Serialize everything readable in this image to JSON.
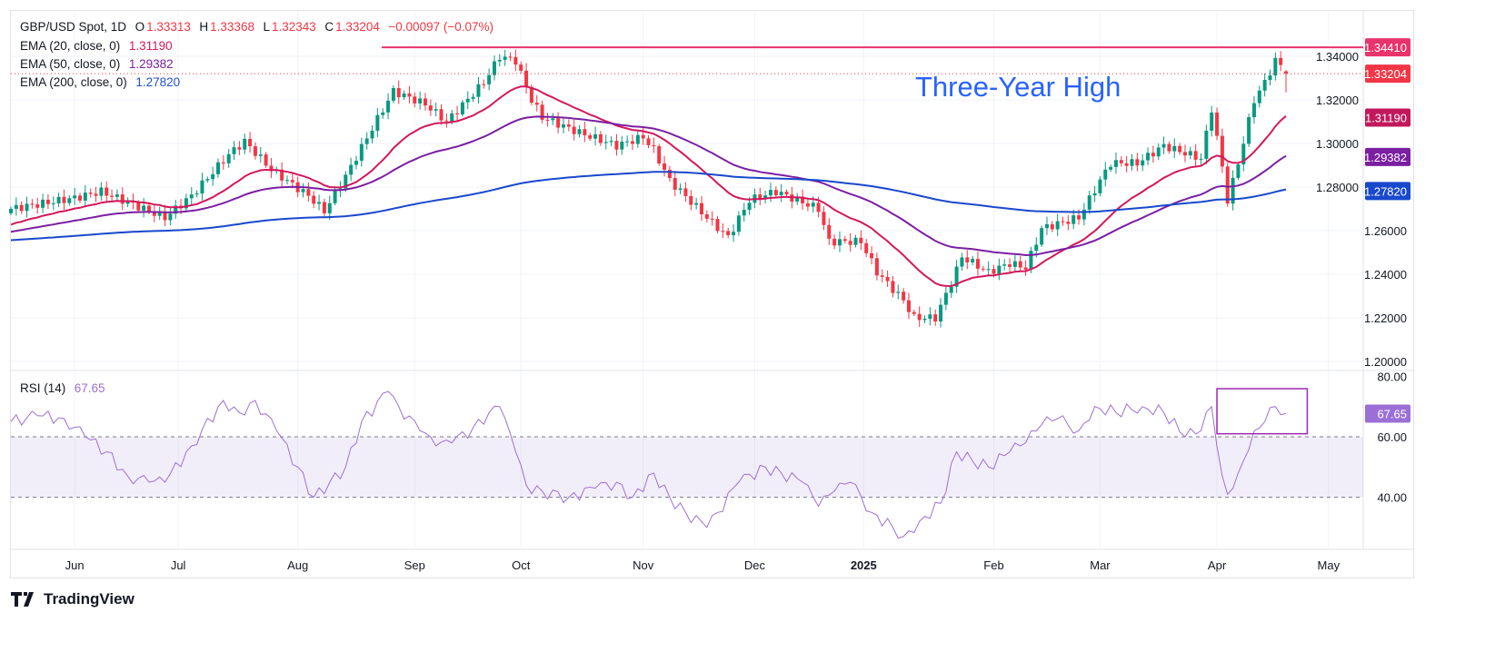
{
  "header": {
    "symbol": "GBP/USD Spot, 1D",
    "open_label": "O",
    "open": "1.33313",
    "high_label": "H",
    "high": "1.33368",
    "low_label": "L",
    "low": "1.32343",
    "close_label": "C",
    "close": "1.33204",
    "change": "−0.00097 (−0.07%)"
  },
  "indicators": [
    {
      "label": "EMA (20, close, 0)",
      "value": "1.31190",
      "color": "#d3185c"
    },
    {
      "label": "EMA (50, close, 0)",
      "value": "1.29382",
      "color": "#7b1fa2"
    },
    {
      "label": "EMA (200, close, 0)",
      "value": "1.27820",
      "color": "#1e4fd6"
    }
  ],
  "rsi_legend": {
    "label": "RSI (14)",
    "value": "67.65",
    "color": "#9c6fd6"
  },
  "annotation": "Three-Year High",
  "branding": "TradingView",
  "chart_data": [
    {
      "type": "candlestick",
      "title": "GBP/USD Spot, 1D",
      "ylim": [
        1.2,
        1.345
      ],
      "price_ticks": [
        "1.34000",
        "1.32000",
        "1.30000",
        "1.28000",
        "1.26000",
        "1.24000",
        "1.22000",
        "1.20000"
      ],
      "price_tick_values": [
        1.34,
        1.32,
        1.3,
        1.28,
        1.26,
        1.24,
        1.22,
        1.2
      ],
      "x_ticks": [
        {
          "label": "Jun",
          "i": 12
        },
        {
          "label": "Jul",
          "i": 31.5
        },
        {
          "label": "Aug",
          "i": 54
        },
        {
          "label": "Sep",
          "i": 76
        },
        {
          "label": "Oct",
          "i": 96
        },
        {
          "label": "Nov",
          "i": 119
        },
        {
          "label": "Dec",
          "i": 140
        },
        {
          "label": "2025",
          "i": 160.5,
          "bold": true
        },
        {
          "label": "Feb",
          "i": 185
        },
        {
          "label": "Mar",
          "i": 205
        },
        {
          "label": "Apr",
          "i": 227
        },
        {
          "label": "May",
          "i": 248
        }
      ],
      "close_keypoints": [
        [
          0,
          1.27
        ],
        [
          12,
          1.275
        ],
        [
          17,
          1.278
        ],
        [
          29,
          1.266
        ],
        [
          34,
          1.276
        ],
        [
          41,
          1.295
        ],
        [
          44,
          1.301
        ],
        [
          49,
          1.288
        ],
        [
          56,
          1.276
        ],
        [
          59,
          1.269
        ],
        [
          63,
          1.285
        ],
        [
          68,
          1.307
        ],
        [
          72,
          1.324
        ],
        [
          78,
          1.318
        ],
        [
          82,
          1.31
        ],
        [
          89,
          1.328
        ],
        [
          92,
          1.34
        ],
        [
          95,
          1.338
        ],
        [
          98,
          1.32
        ],
        [
          100,
          1.312
        ],
        [
          107,
          1.305
        ],
        [
          114,
          1.299
        ],
        [
          119,
          1.303
        ],
        [
          121,
          1.297
        ],
        [
          124,
          1.283
        ],
        [
          131,
          1.266
        ],
        [
          135,
          1.257
        ],
        [
          139,
          1.274
        ],
        [
          144,
          1.278
        ],
        [
          152,
          1.27
        ],
        [
          154,
          1.255
        ],
        [
          160,
          1.255
        ],
        [
          163,
          1.241
        ],
        [
          168,
          1.228
        ],
        [
          170,
          1.22
        ],
        [
          174,
          1.22
        ],
        [
          177,
          1.236
        ],
        [
          179,
          1.248
        ],
        [
          184,
          1.241
        ],
        [
          188,
          1.245
        ],
        [
          191,
          1.243
        ],
        [
          194,
          1.261
        ],
        [
          201,
          1.266
        ],
        [
          205,
          1.283
        ],
        [
          207,
          1.291
        ],
        [
          212,
          1.291
        ],
        [
          217,
          1.299
        ],
        [
          224,
          1.293
        ],
        [
          226,
          1.316
        ],
        [
          228,
          1.289
        ],
        [
          229,
          1.274
        ],
        [
          231,
          1.291
        ],
        [
          234,
          1.32
        ],
        [
          236,
          1.328
        ],
        [
          238,
          1.338
        ],
        [
          239,
          1.336
        ]
      ],
      "last_candle": {
        "open": 1.33313,
        "high": 1.33368,
        "low": 1.32343,
        "close": 1.33204
      },
      "ema_periods": [
        20,
        50,
        200
      ],
      "resistance": {
        "value": 1.3441,
        "label": "1.34410",
        "color": "#e8336b"
      },
      "price_badges": [
        {
          "label": "1.34410",
          "value": 1.3441,
          "color": "#e8336b"
        },
        {
          "label": "1.33204",
          "value": 1.33204,
          "color": "#f23645"
        },
        {
          "label": "1.31190",
          "value": 1.3119,
          "color": "#c2185b"
        },
        {
          "label": "1.29382",
          "value": 1.29382,
          "color": "#7b1fa2"
        },
        {
          "label": "1.27820",
          "value": 1.2782,
          "color": "#1848cc"
        }
      ],
      "up_color": "#089981",
      "down_color": "#f23645"
    },
    {
      "type": "line",
      "title": "RSI (14)",
      "ylim": [
        25,
        80
      ],
      "ticks": [
        "80.00",
        "60.00",
        "40.00"
      ],
      "tick_values": [
        80,
        60,
        40
      ],
      "band": [
        40,
        60
      ],
      "rsi_keypoints": [
        [
          0,
          65
        ],
        [
          5,
          67
        ],
        [
          10,
          66
        ],
        [
          14,
          60
        ],
        [
          18,
          55
        ],
        [
          22,
          47
        ],
        [
          26,
          45
        ],
        [
          29,
          45
        ],
        [
          34,
          57
        ],
        [
          40,
          72
        ],
        [
          43,
          68
        ],
        [
          46,
          72
        ],
        [
          50,
          62
        ],
        [
          54,
          50
        ],
        [
          57,
          40
        ],
        [
          60,
          45
        ],
        [
          63,
          50
        ],
        [
          66,
          65
        ],
        [
          71,
          75
        ],
        [
          73,
          70
        ],
        [
          77,
          62
        ],
        [
          80,
          57
        ],
        [
          83,
          58
        ],
        [
          87,
          63
        ],
        [
          90,
          68
        ],
        [
          92,
          70
        ],
        [
          95,
          55
        ],
        [
          97,
          44
        ],
        [
          100,
          42
        ],
        [
          105,
          40
        ],
        [
          110,
          43
        ],
        [
          114,
          45
        ],
        [
          117,
          40
        ],
        [
          121,
          48
        ],
        [
          124,
          40
        ],
        [
          127,
          35
        ],
        [
          131,
          30
        ],
        [
          133,
          35
        ],
        [
          137,
          45
        ],
        [
          142,
          50
        ],
        [
          145,
          48
        ],
        [
          149,
          45
        ],
        [
          152,
          37
        ],
        [
          155,
          42
        ],
        [
          158,
          45
        ],
        [
          162,
          35
        ],
        [
          166,
          30
        ],
        [
          168,
          27
        ],
        [
          171,
          32
        ],
        [
          175,
          38
        ],
        [
          178,
          55
        ],
        [
          181,
          52
        ],
        [
          184,
          50
        ],
        [
          188,
          55
        ],
        [
          191,
          58
        ],
        [
          194,
          64
        ],
        [
          197,
          66
        ],
        [
          201,
          62
        ],
        [
          204,
          70
        ],
        [
          208,
          68
        ],
        [
          213,
          70
        ],
        [
          217,
          68
        ],
        [
          221,
          60
        ],
        [
          224,
          62
        ],
        [
          226,
          70
        ],
        [
          228,
          47
        ],
        [
          229,
          41
        ],
        [
          231,
          48
        ],
        [
          234,
          62
        ],
        [
          236,
          65
        ],
        [
          238,
          70
        ],
        [
          240,
          67.65
        ]
      ],
      "badge": {
        "label": "67.65",
        "value": 67.65,
        "color": "#9c6fd6"
      },
      "highlight_box": {
        "i_range": [
          227,
          244
        ],
        "v_range": [
          61,
          75
        ]
      }
    }
  ]
}
